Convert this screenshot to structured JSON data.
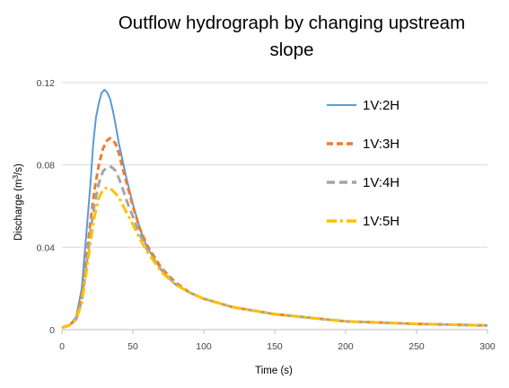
{
  "chart_data": {
    "type": "line",
    "title_line1": "Outflow hydrograph by changing upstream",
    "title_line2": "slope",
    "xlabel": "Time (s)",
    "ylabel_main": "Discharge (m",
    "ylabel_sup": "3",
    "ylabel_end": "/s)",
    "xlim": [
      0,
      300
    ],
    "ylim": [
      0,
      0.14
    ],
    "xticks": [
      0,
      50,
      100,
      150,
      200,
      250,
      300
    ],
    "yticks": [
      0,
      0.04,
      0.08,
      0.12
    ],
    "xtick_labels": [
      "0",
      "50",
      "100",
      "150",
      "200",
      "250",
      "300"
    ],
    "ytick_labels": [
      "0",
      "0.04",
      "0.08",
      "0.12"
    ],
    "grid": "horizontal",
    "legend_position": "right",
    "series": [
      {
        "name": "1V:2H",
        "color": "#5b9bd5",
        "dash": "solid",
        "x": [
          0,
          5,
          10,
          14,
          17,
          20,
          22,
          24,
          26,
          28,
          30,
          32,
          34,
          36,
          38,
          40,
          45,
          50,
          55,
          60,
          70,
          80,
          90,
          100,
          120,
          150,
          200,
          250,
          300
        ],
        "y": [
          0.001,
          0.002,
          0.006,
          0.02,
          0.045,
          0.07,
          0.09,
          0.103,
          0.11,
          0.115,
          0.1165,
          0.115,
          0.112,
          0.106,
          0.099,
          0.091,
          0.075,
          0.061,
          0.049,
          0.04,
          0.029,
          0.022,
          0.018,
          0.015,
          0.011,
          0.0075,
          0.004,
          0.0028,
          0.002
        ]
      },
      {
        "name": "1V:3H",
        "color": "#ed7d31",
        "dash": "7,4",
        "x": [
          0,
          5,
          10,
          14,
          17,
          20,
          23,
          26,
          29,
          32,
          34,
          36,
          38,
          40,
          43,
          46,
          50,
          55,
          60,
          70,
          80,
          90,
          100,
          120,
          150,
          200,
          250,
          300
        ],
        "y": [
          0.001,
          0.002,
          0.005,
          0.016,
          0.033,
          0.052,
          0.068,
          0.08,
          0.088,
          0.092,
          0.093,
          0.092,
          0.09,
          0.086,
          0.078,
          0.07,
          0.06,
          0.049,
          0.041,
          0.03,
          0.023,
          0.018,
          0.015,
          0.011,
          0.0075,
          0.004,
          0.0028,
          0.002
        ]
      },
      {
        "name": "1V:4H",
        "color": "#a5a5a5",
        "dash": "9,5",
        "x": [
          0,
          5,
          10,
          14,
          17,
          20,
          23,
          26,
          29,
          32,
          35,
          38,
          41,
          44,
          47,
          50,
          55,
          60,
          70,
          80,
          90,
          100,
          120,
          150,
          200,
          250,
          300
        ],
        "y": [
          0.001,
          0.002,
          0.005,
          0.014,
          0.03,
          0.047,
          0.061,
          0.071,
          0.077,
          0.079,
          0.079,
          0.077,
          0.072,
          0.066,
          0.06,
          0.055,
          0.046,
          0.039,
          0.029,
          0.022,
          0.018,
          0.015,
          0.011,
          0.0075,
          0.004,
          0.0028,
          0.002
        ]
      },
      {
        "name": "1V:5H",
        "color": "#ffc000",
        "dash": "11,4,3,4",
        "x": [
          0,
          5,
          10,
          14,
          17,
          20,
          23,
          26,
          29,
          32,
          35,
          38,
          41,
          44,
          47,
          50,
          55,
          60,
          70,
          80,
          90,
          100,
          120,
          150,
          200,
          250,
          300
        ],
        "y": [
          0.001,
          0.002,
          0.005,
          0.013,
          0.027,
          0.042,
          0.055,
          0.064,
          0.068,
          0.069,
          0.068,
          0.066,
          0.063,
          0.059,
          0.055,
          0.051,
          0.044,
          0.038,
          0.028,
          0.022,
          0.018,
          0.015,
          0.011,
          0.0075,
          0.004,
          0.0028,
          0.002
        ]
      }
    ]
  }
}
